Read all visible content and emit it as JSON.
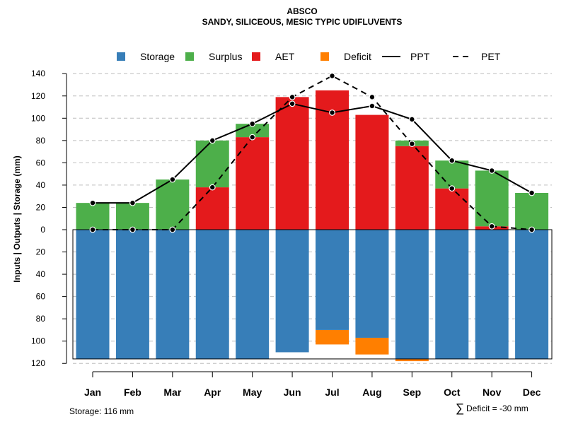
{
  "chart_data": {
    "type": "bar",
    "title": "ABSCO",
    "subtitle": "SANDY, SILICEOUS, MESIC TYPIC UDIFLUVENTS",
    "ylabel": "Inputs | Outputs | Storage    (mm)",
    "ylim": [
      -120,
      140
    ],
    "yticks": [
      140,
      120,
      100,
      80,
      60,
      40,
      20,
      0,
      -20,
      -40,
      -60,
      -80,
      -100,
      -120
    ],
    "ytick_labels": [
      "140",
      "120",
      "100",
      "80",
      "60",
      "40",
      "20",
      "0",
      "20",
      "40",
      "60",
      "80",
      "100",
      "120"
    ],
    "categories": [
      "Jan",
      "Feb",
      "Mar",
      "Apr",
      "May",
      "Jun",
      "Jul",
      "Aug",
      "Sep",
      "Oct",
      "Nov",
      "Dec"
    ],
    "legend": [
      "Storage",
      "Surplus",
      "AET",
      "Deficit",
      "PPT",
      "PET"
    ],
    "series": [
      {
        "name": "AET",
        "values": [
          0,
          0,
          0,
          38,
          83,
          119,
          125,
          103,
          75,
          37,
          3,
          0
        ]
      },
      {
        "name": "Surplus",
        "values": [
          24,
          24,
          45,
          42,
          12,
          0,
          0,
          0,
          5,
          25,
          50,
          33
        ]
      },
      {
        "name": "Storage",
        "values": [
          116,
          116,
          116,
          116,
          116,
          110,
          90,
          97,
          116,
          116,
          116,
          116
        ]
      },
      {
        "name": "Deficit",
        "values": [
          0,
          0,
          0,
          0,
          0,
          0,
          13,
          15,
          2,
          0,
          0,
          0
        ]
      },
      {
        "name": "PPT",
        "values": [
          24,
          24,
          45,
          80,
          95,
          113,
          105,
          111,
          99,
          62,
          53,
          33
        ]
      },
      {
        "name": "PET",
        "values": [
          0,
          0,
          0,
          38,
          83,
          119,
          138,
          119,
          77,
          37,
          3,
          0
        ]
      }
    ],
    "colors": {
      "Storage": "#377EB8",
      "Surplus": "#4DAF4A",
      "AET": "#E41A1C",
      "Deficit": "#FF7F00",
      "line": "#000000",
      "grid": "#BEBEBE"
    },
    "storage_note": "Storage: 116 mm",
    "deficit_note": "Deficit = -30 mm",
    "deficit_symbol": "∑"
  }
}
